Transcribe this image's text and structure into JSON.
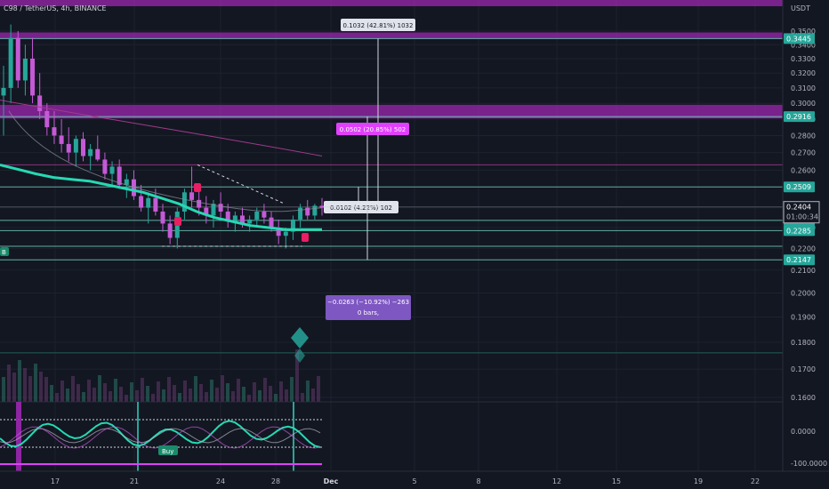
{
  "header": {
    "symbol_line": "C98 / TetherUS, 4h, BINANCE"
  },
  "price_axis": {
    "unit_label": "USDT",
    "ticks": [
      "0.3500",
      "0.3400",
      "0.3300",
      "0.3200",
      "0.3100",
      "0.3000",
      "0.2900",
      "0.2800",
      "0.2700",
      "0.2600",
      "0.2400",
      "0.2300",
      "0.2200",
      "0.2100",
      "0.2000",
      "0.1900",
      "0.1800",
      "0.1700",
      "0.1600"
    ],
    "tick_values": [
      0.35,
      0.34,
      0.33,
      0.32,
      0.31,
      0.3,
      0.29,
      0.28,
      0.27,
      0.26,
      0.24,
      0.23,
      0.22,
      0.21,
      0.2,
      0.19,
      0.18,
      0.17,
      0.16
    ],
    "badges": [
      {
        "text": "0.3445",
        "value": 0.3445,
        "color": "#26a69a"
      },
      {
        "text": "0.2916",
        "value": 0.2916,
        "color": "#26a69a"
      },
      {
        "text": "0.2509",
        "value": 0.2509,
        "color": "#26a69a"
      },
      {
        "text": "0.2336",
        "value": 0.2336,
        "color": "#26a69a"
      },
      {
        "text": "0.2285",
        "value": 0.2285,
        "color": "#26a69a"
      },
      {
        "text": "0.2147",
        "value": 0.2147,
        "color": "#26a69a"
      }
    ],
    "current_price": {
      "price": "0.2404",
      "countdown": "01:00:34",
      "value": 0.2404
    }
  },
  "oscillator_axis": {
    "ticks": [
      "0.0000",
      "-100.0000"
    ]
  },
  "time_axis": {
    "labels": [
      "17",
      "21",
      "24",
      "28",
      "Dec",
      "5",
      "8",
      "12",
      "15",
      "19",
      "22"
    ],
    "bold_label": "Dec"
  },
  "measurements": [
    {
      "text": "0.1032 (42.81%) 1032",
      "style": "light",
      "target": 0.3445
    },
    {
      "text": "0.0502 (20.85%) 502",
      "style": "pink",
      "target": 0.2916
    },
    {
      "text": "0.0102 (4.22%) 102",
      "style": "light",
      "target": 0.2509
    },
    {
      "text": "−0.0263 (−10.92%) −263",
      "line2": "0 bars,",
      "style": "purple",
      "target": 0.2147
    }
  ],
  "signals": {
    "buy_label": "Buy",
    "b_label": "B"
  },
  "colors": {
    "background": "#131722",
    "up": "#26a69a",
    "down": "#c45ad6",
    "zone": "#9c27b0",
    "ema": "#26d9b3",
    "grid": "#1e222d",
    "axis_text": "#b2b5be"
  },
  "chart_data": {
    "type": "candlestick",
    "y_scale": "log",
    "ylim": [
      0.155,
      0.36
    ],
    "x_range": [
      "Nov 13",
      "Dec 24"
    ],
    "zones": [
      {
        "top": 0.36,
        "bottom": 0.355
      },
      {
        "top": 0.349,
        "bottom": 0.3445
      },
      {
        "top": 0.299,
        "bottom": 0.2916
      }
    ],
    "levels": [
      0.3445,
      0.2916,
      0.263,
      0.2509,
      0.2404,
      0.2336,
      0.2285,
      0.221,
      0.2147,
      0.176
    ],
    "ema": [
      0.263,
      0.2605,
      0.258,
      0.256,
      0.255,
      0.254,
      0.252,
      0.25,
      0.248,
      0.245,
      0.242,
      0.238,
      0.235,
      0.233,
      0.231,
      0.23,
      0.229,
      0.229,
      0.229
    ],
    "candles": [
      [
        0.305,
        0.325,
        0.28,
        0.31
      ],
      [
        0.31,
        0.355,
        0.3,
        0.345
      ],
      [
        0.345,
        0.35,
        0.31,
        0.315
      ],
      [
        0.315,
        0.34,
        0.305,
        0.33
      ],
      [
        0.33,
        0.345,
        0.3,
        0.305
      ],
      [
        0.305,
        0.32,
        0.29,
        0.295
      ],
      [
        0.295,
        0.3,
        0.28,
        0.285
      ],
      [
        0.285,
        0.295,
        0.275,
        0.28
      ],
      [
        0.28,
        0.29,
        0.27,
        0.275
      ],
      [
        0.275,
        0.285,
        0.265,
        0.27
      ],
      [
        0.27,
        0.28,
        0.262,
        0.278
      ],
      [
        0.278,
        0.282,
        0.265,
        0.268
      ],
      [
        0.268,
        0.275,
        0.26,
        0.272
      ],
      [
        0.272,
        0.28,
        0.265,
        0.266
      ],
      [
        0.266,
        0.27,
        0.255,
        0.258
      ],
      [
        0.258,
        0.265,
        0.252,
        0.262
      ],
      [
        0.262,
        0.266,
        0.25,
        0.252
      ],
      [
        0.252,
        0.258,
        0.245,
        0.255
      ],
      [
        0.255,
        0.26,
        0.244,
        0.246
      ],
      [
        0.246,
        0.252,
        0.238,
        0.24
      ],
      [
        0.24,
        0.248,
        0.232,
        0.245
      ],
      [
        0.245,
        0.25,
        0.236,
        0.238
      ],
      [
        0.238,
        0.242,
        0.228,
        0.232
      ],
      [
        0.232,
        0.236,
        0.222,
        0.225
      ],
      [
        0.225,
        0.24,
        0.22,
        0.238
      ],
      [
        0.238,
        0.25,
        0.234,
        0.248
      ],
      [
        0.248,
        0.262,
        0.24,
        0.244
      ],
      [
        0.244,
        0.25,
        0.236,
        0.24
      ],
      [
        0.24,
        0.246,
        0.232,
        0.236
      ],
      [
        0.236,
        0.244,
        0.23,
        0.242
      ],
      [
        0.242,
        0.248,
        0.235,
        0.238
      ],
      [
        0.238,
        0.242,
        0.23,
        0.233
      ],
      [
        0.233,
        0.238,
        0.228,
        0.236
      ],
      [
        0.236,
        0.24,
        0.23,
        0.232
      ],
      [
        0.232,
        0.236,
        0.228,
        0.234
      ],
      [
        0.234,
        0.24,
        0.23,
        0.238
      ],
      [
        0.238,
        0.242,
        0.232,
        0.235
      ],
      [
        0.235,
        0.238,
        0.228,
        0.23
      ],
      [
        0.23,
        0.234,
        0.222,
        0.226
      ],
      [
        0.226,
        0.23,
        0.22,
        0.228
      ],
      [
        0.228,
        0.236,
        0.224,
        0.234
      ],
      [
        0.234,
        0.242,
        0.23,
        0.24
      ],
      [
        0.24,
        0.244,
        0.234,
        0.236
      ],
      [
        0.236,
        0.242,
        0.234,
        0.241
      ],
      [
        0.241,
        0.245,
        0.236,
        0.24
      ]
    ]
  }
}
